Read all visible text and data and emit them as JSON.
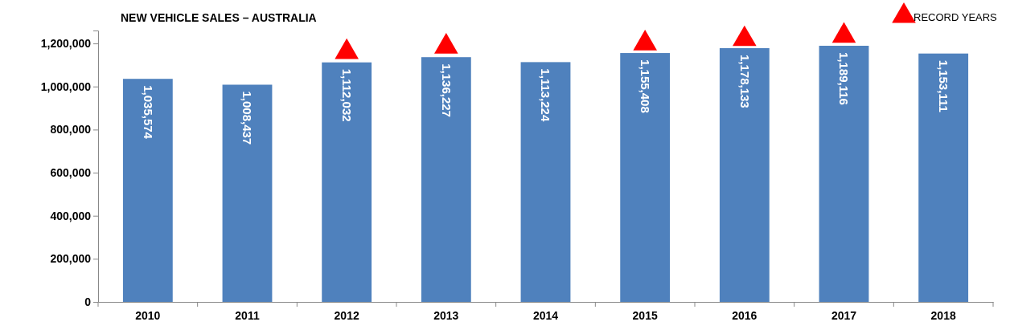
{
  "chart_data": {
    "type": "bar",
    "title": "NEW VEHICLE SALES – AUSTRALIA",
    "categories": [
      "2010",
      "2011",
      "2012",
      "2013",
      "2014",
      "2015",
      "2016",
      "2017",
      "2018"
    ],
    "series": [
      {
        "color": "#4f81bd",
        "values": [
          1035574,
          1008437,
          1112032,
          1136227,
          1113224,
          1155408,
          1178133,
          1189116,
          1153111
        ],
        "value_labels": [
          "1,035,574",
          "1,008,437",
          "1,112,032",
          "1,136,227",
          "1,113,224",
          "1,155,408",
          "1,178,133",
          "1,189,116",
          "1,153,111"
        ]
      },
      {
        "type": "scatter",
        "name": "RECORD YEARS",
        "color": "#ff0000",
        "marker": "triangle",
        "values": [
          null,
          null,
          1160000,
          1185000,
          null,
          1200000,
          1220000,
          1235000,
          null
        ]
      }
    ],
    "ylim": [
      0,
      1260000
    ],
    "yticks": [
      {
        "value": 0,
        "label": "0"
      },
      {
        "value": 200000,
        "label": "200,000"
      },
      {
        "value": 400000,
        "label": "400,000"
      },
      {
        "value": 600000,
        "label": "600,000"
      },
      {
        "value": 800000,
        "label": "800,000"
      },
      {
        "value": 1000000,
        "label": "1,000,000"
      },
      {
        "value": 1200000,
        "label": "1,200,000"
      }
    ],
    "grid": false,
    "legend": "top right"
  }
}
